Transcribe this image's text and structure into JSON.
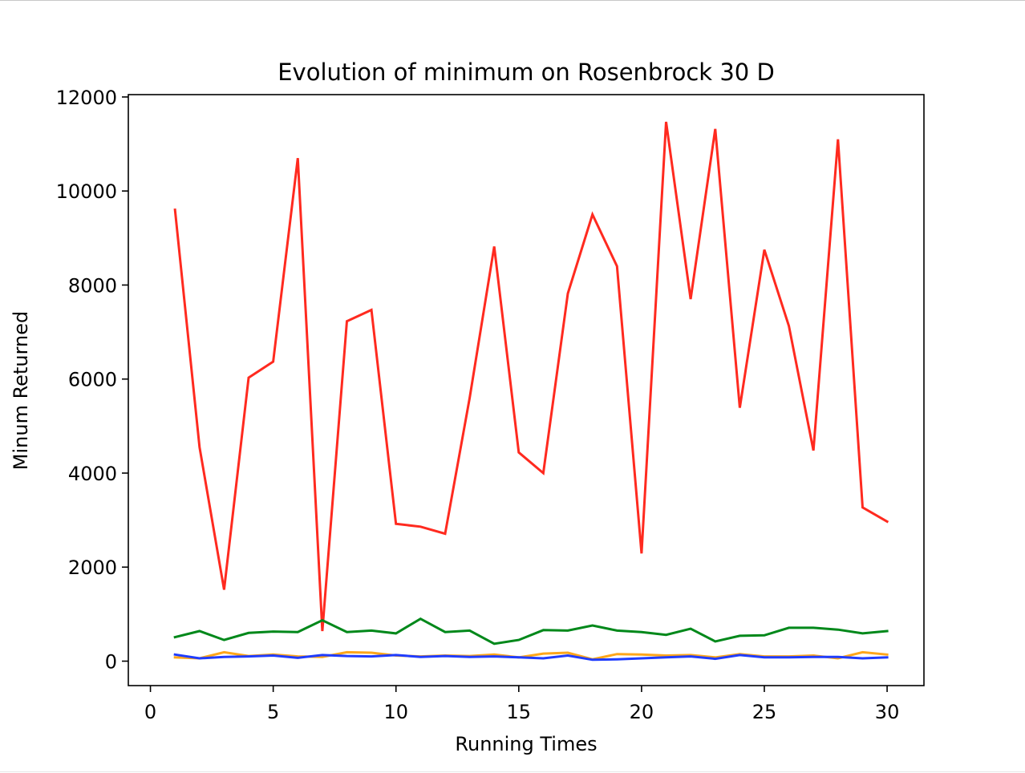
{
  "chart_data": {
    "type": "line",
    "title": "Evolution of minimum on Rosenbrock 30 D",
    "xlabel": "Running Times",
    "ylabel": "Minum Returned",
    "xlim": [
      -0.9,
      31.5
    ],
    "ylim": [
      -520,
      12050
    ],
    "xticks": [
      0,
      5,
      10,
      15,
      20,
      25,
      30
    ],
    "yticks": [
      0,
      2000,
      4000,
      6000,
      8000,
      10000,
      12000
    ],
    "grid": false,
    "x": [
      1,
      2,
      3,
      4,
      5,
      6,
      7,
      8,
      9,
      10,
      11,
      12,
      13,
      14,
      15,
      16,
      17,
      18,
      19,
      20,
      21,
      22,
      23,
      24,
      25,
      26,
      27,
      28,
      29,
      30
    ],
    "series": [
      {
        "name": "red",
        "color": "#ff2a1f",
        "values": [
          9600,
          4550,
          1520,
          6030,
          6370,
          10700,
          640,
          7230,
          7470,
          2920,
          2860,
          2710,
          5600,
          8820,
          4440,
          4000,
          7820,
          9500,
          8400,
          2290,
          11470,
          7700,
          11320,
          5390,
          8750,
          7130,
          4480,
          11100,
          3270,
          2970
        ]
      },
      {
        "name": "green",
        "color": "#00881a",
        "values": [
          510,
          640,
          450,
          600,
          630,
          620,
          870,
          620,
          650,
          590,
          900,
          620,
          650,
          370,
          450,
          660,
          650,
          760,
          650,
          620,
          560,
          690,
          420,
          540,
          550,
          710,
          710,
          670,
          590,
          640
        ]
      },
      {
        "name": "orange",
        "color": "#ffa61a",
        "values": [
          80,
          60,
          190,
          110,
          140,
          100,
          90,
          190,
          180,
          120,
          100,
          120,
          110,
          140,
          80,
          160,
          180,
          40,
          150,
          140,
          120,
          130,
          80,
          150,
          100,
          100,
          120,
          60,
          190,
          140
        ]
      },
      {
        "name": "blue",
        "color": "#1f3cff",
        "values": [
          140,
          60,
          90,
          100,
          120,
          70,
          130,
          110,
          100,
          130,
          90,
          110,
          90,
          100,
          80,
          60,
          120,
          30,
          40,
          60,
          80,
          100,
          50,
          130,
          80,
          80,
          90,
          90,
          60,
          80
        ]
      }
    ]
  }
}
